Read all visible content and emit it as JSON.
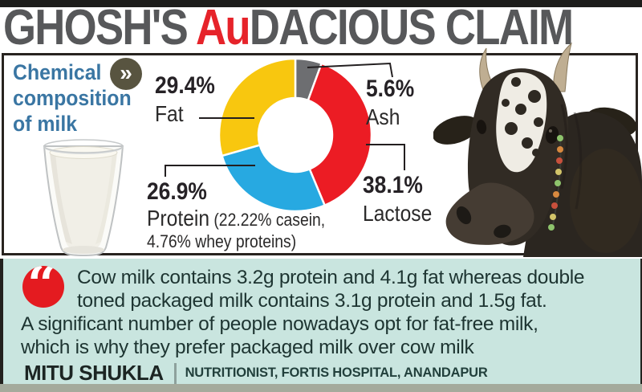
{
  "title": {
    "part1": "GHOSH'S ",
    "accent": "Au",
    "part2": "DACIOUS CLAIM"
  },
  "panel": {
    "heading_lines": [
      "Chemical",
      "composition",
      "of milk"
    ],
    "chevron_icon": "»"
  },
  "chart_data": {
    "type": "pie",
    "donut": true,
    "title": "Chemical composition of milk",
    "unit": "%",
    "start_angle_deg": 0,
    "direction": "clockwise",
    "legend": "none",
    "slices": [
      {
        "label": "Ash",
        "value": 5.6,
        "pct_label": "5.6%",
        "color": "#6d6e71"
      },
      {
        "label": "Lactose",
        "value": 38.1,
        "pct_label": "38.1%",
        "color": "#ec1c24"
      },
      {
        "label": "Protein",
        "value": 26.9,
        "pct_label": "26.9%",
        "color": "#27a9e1",
        "note_line1": "(22.22% casein,",
        "note_line2": "4.76% whey proteins)"
      },
      {
        "label": "Fat",
        "value": 29.4,
        "pct_label": "29.4%",
        "color": "#f8c70f"
      }
    ]
  },
  "quote": {
    "icon": "“",
    "lines": [
      "Cow milk contains 3.2g protein and 4.1g fat whereas double",
      "toned packaged milk contains 3.1g protein and 1.5g fat.",
      "A significant number of people nowadays opt for fat-free milk,",
      "which is why they prefer packaged milk over cow milk"
    ],
    "author": "MITU SHUKLA",
    "separator": "|",
    "credential": "NUTRITIONIST, FORTIS HOSPITAL, ANANDAPUR"
  },
  "colors": {
    "accent_red": "#e6232a",
    "title_gray": "#57585a",
    "heading_blue": "#3a76a3",
    "quote_bg": "#c9e5df",
    "quote_text": "#1d3431",
    "quote_badge_red": "#e41b20",
    "panel_border": "#28231f"
  }
}
